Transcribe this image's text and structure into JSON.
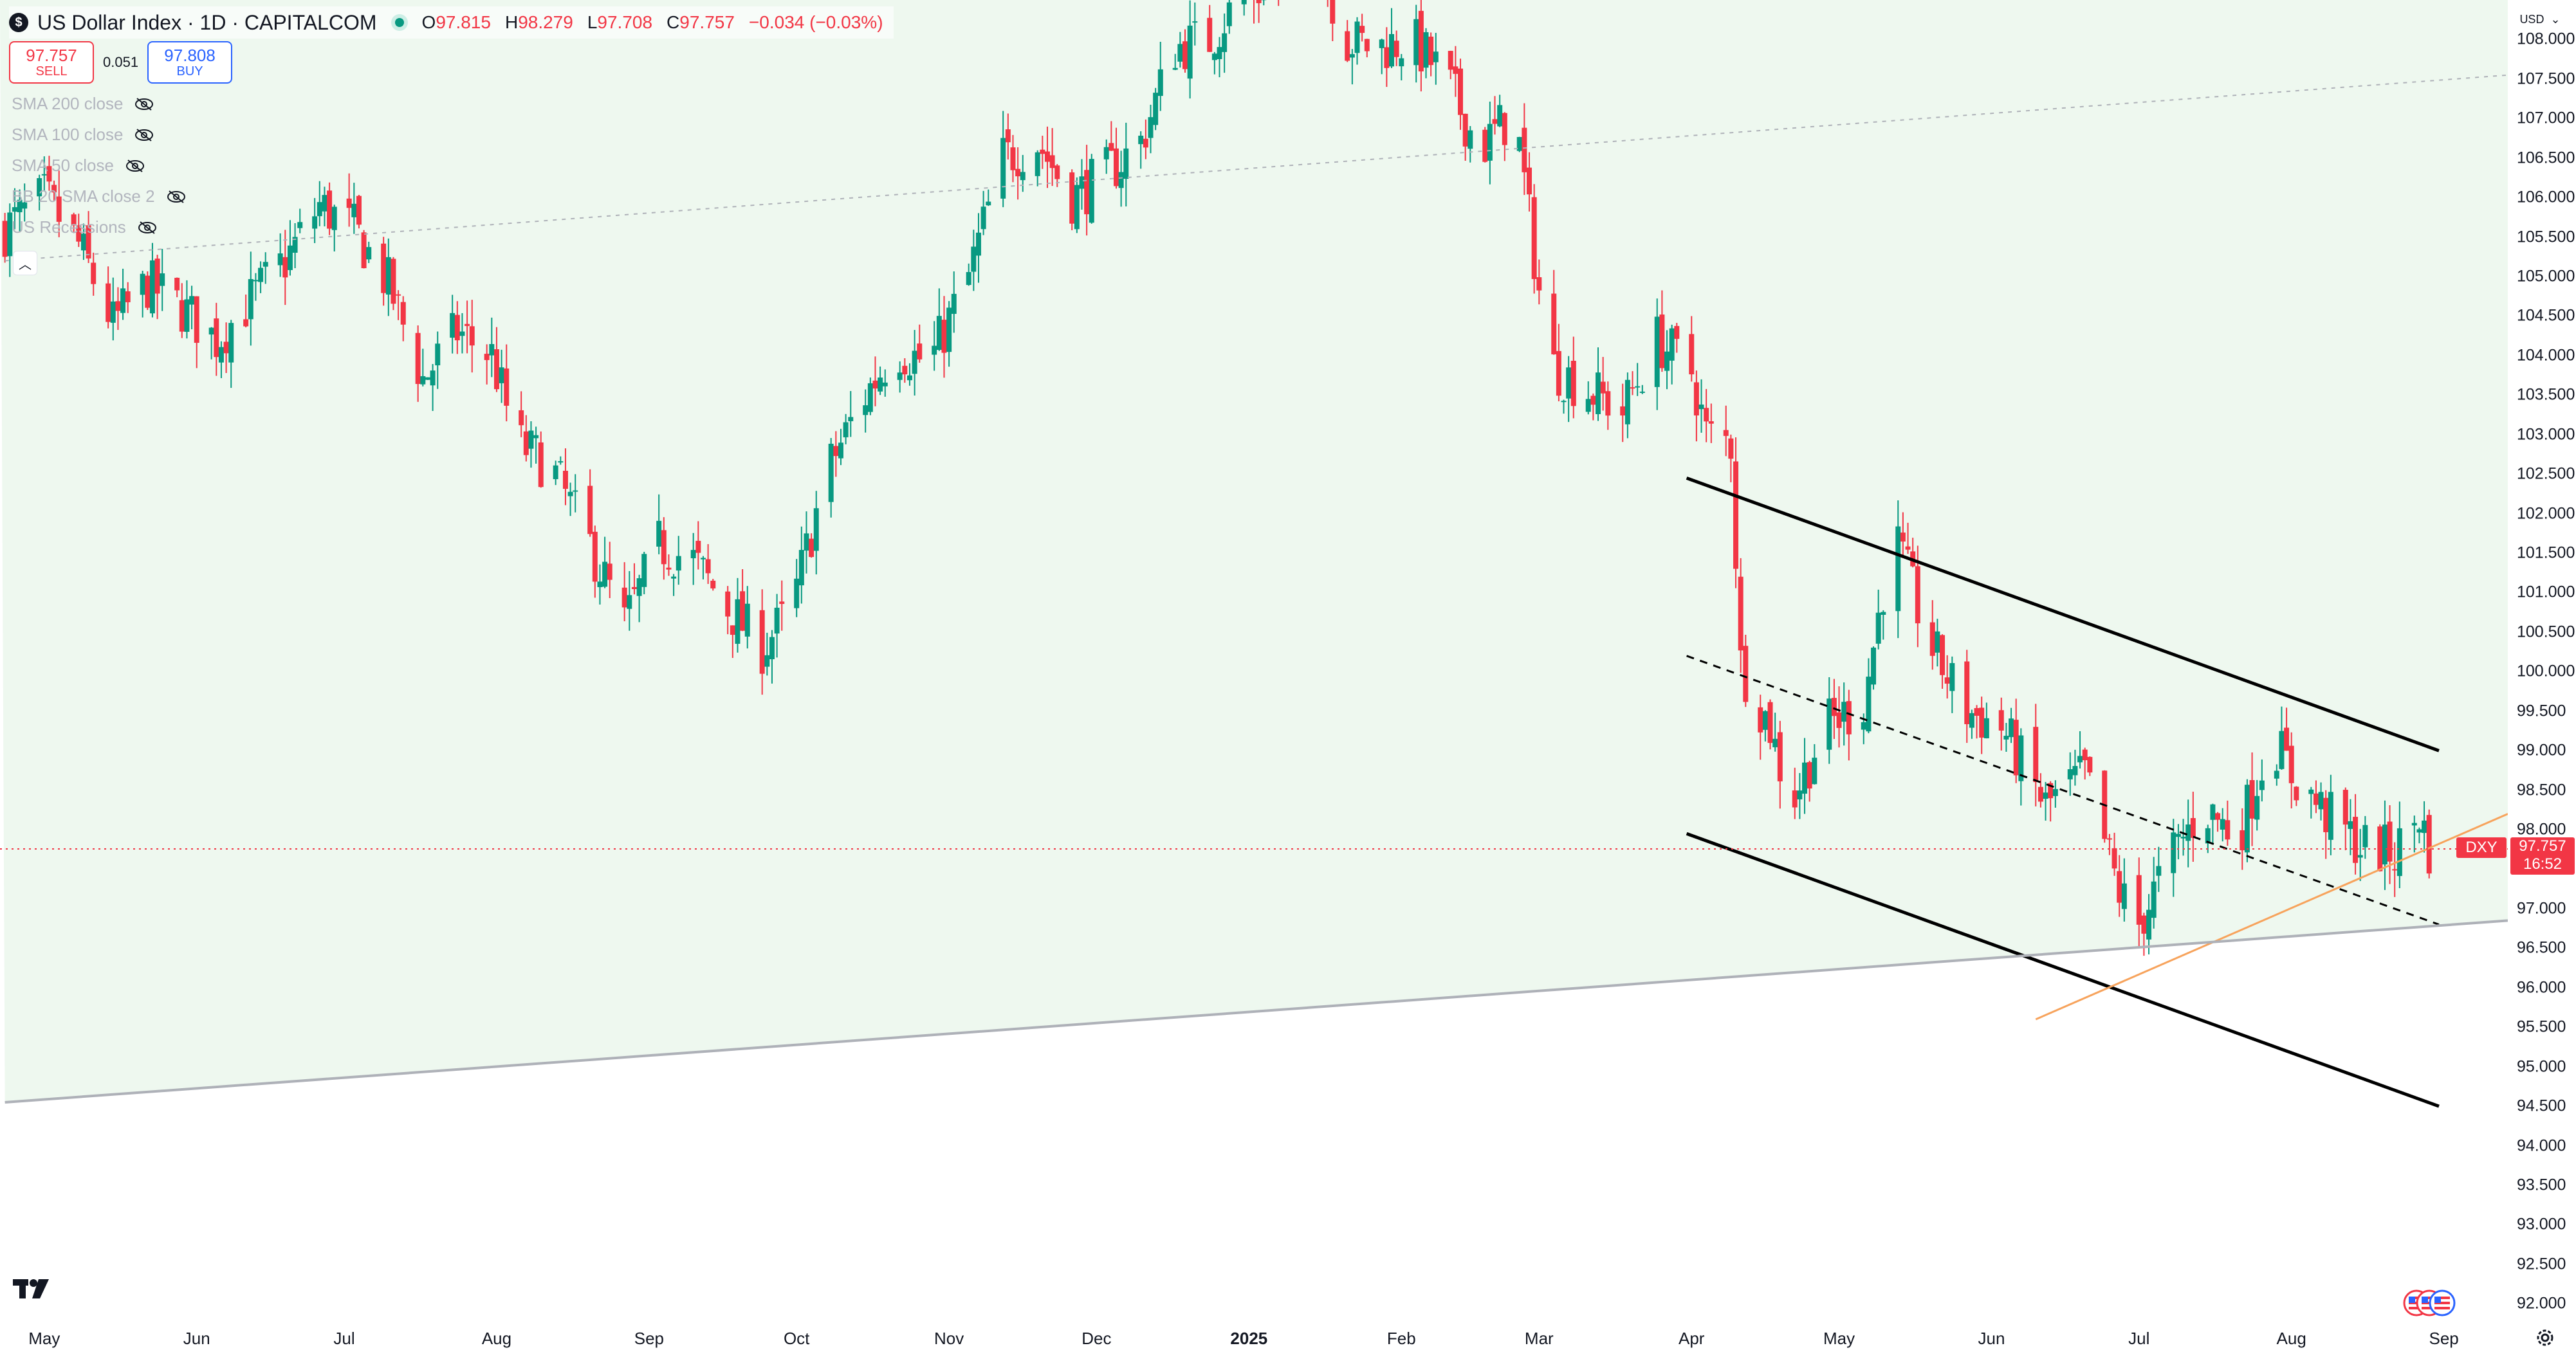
{
  "header": {
    "symbol_badge": "$",
    "title": "US Dollar Index · 1D · CAPITALCOM",
    "ohlc": [
      {
        "k": "O",
        "v": "97.815"
      },
      {
        "k": "H",
        "v": "98.279"
      },
      {
        "k": "L",
        "v": "97.708"
      },
      {
        "k": "C",
        "v": "97.757"
      },
      {
        "k": "",
        "v": "−0.034 (−0.03%)"
      }
    ]
  },
  "trade": {
    "sell_price": "97.757",
    "sell_label": "SELL",
    "spread": "0.051",
    "buy_price": "97.808",
    "buy_label": "BUY"
  },
  "indicators": [
    {
      "label": "SMA 200 close",
      "icon": "eye-crossed-icon"
    },
    {
      "label": "SMA 100 close",
      "icon": "eye-crossed-icon"
    },
    {
      "label": "SMA 50 close",
      "icon": "eye-crossed-icon"
    },
    {
      "label": "BB 20 SMA close 2",
      "icon": "eye-crossed-icon"
    },
    {
      "label": "US Recessions",
      "icon": "eye-crossed-icon"
    }
  ],
  "axis": {
    "currency": "USD",
    "current_price": "97.757",
    "countdown": "16:52",
    "symbol_tag": "DXY"
  },
  "colors": {
    "up": "#089981",
    "down": "#f23645",
    "zone": "#eef8ef",
    "trend": "#f7a35c"
  },
  "chart_data": {
    "type": "candlestick",
    "title": "US Dollar Index · 1D · CAPITALCOM",
    "xlabel": "",
    "ylabel": "",
    "ylim": [
      91.75,
      108.5
    ],
    "y_ticks": [
      92.0,
      92.5,
      93.0,
      93.5,
      94.0,
      94.5,
      95.0,
      95.5,
      96.0,
      96.5,
      97.0,
      97.5,
      98.0,
      98.5,
      99.0,
      99.5,
      100.0,
      100.5,
      101.0,
      101.5,
      102.0,
      102.5,
      103.0,
      103.5,
      104.0,
      104.5,
      105.0,
      105.5,
      106.0,
      106.5,
      107.0,
      107.5,
      108.0
    ],
    "x_ticks": [
      {
        "label": "May",
        "date": "2024-05-01"
      },
      {
        "label": "Jun",
        "date": "2024-06-01"
      },
      {
        "label": "Jul",
        "date": "2024-07-01"
      },
      {
        "label": "Aug",
        "date": "2024-08-01"
      },
      {
        "label": "Sep",
        "date": "2024-09-01"
      },
      {
        "label": "Oct",
        "date": "2024-10-01"
      },
      {
        "label": "Nov",
        "date": "2024-11-01"
      },
      {
        "label": "Dec",
        "date": "2024-12-01"
      },
      {
        "label": "2025",
        "date": "2025-01-01",
        "bold": true
      },
      {
        "label": "Feb",
        "date": "2025-02-01"
      },
      {
        "label": "Mar",
        "date": "2025-03-01"
      },
      {
        "label": "Apr",
        "date": "2025-04-01"
      },
      {
        "label": "May",
        "date": "2025-05-01"
      },
      {
        "label": "Jun",
        "date": "2025-06-01"
      },
      {
        "label": "Jul",
        "date": "2025-07-01"
      },
      {
        "label": "Aug",
        "date": "2025-08-01"
      },
      {
        "label": "Sep",
        "date": "2025-09-01"
      }
    ],
    "close_path": [
      [
        "2024-04-23",
        105.6
      ],
      [
        "2024-05-01",
        106.0
      ],
      [
        "2024-05-08",
        105.4
      ],
      [
        "2024-05-15",
        104.4
      ],
      [
        "2024-05-22",
        104.9
      ],
      [
        "2024-05-29",
        104.6
      ],
      [
        "2024-06-05",
        104.2
      ],
      [
        "2024-06-12",
        104.7
      ],
      [
        "2024-06-19",
        105.2
      ],
      [
        "2024-06-26",
        105.9
      ],
      [
        "2024-07-03",
        105.6
      ],
      [
        "2024-07-10",
        104.9
      ],
      [
        "2024-07-17",
        103.7
      ],
      [
        "2024-07-24",
        104.3
      ],
      [
        "2024-07-31",
        104.0
      ],
      [
        "2024-08-05",
        102.9
      ],
      [
        "2024-08-12",
        102.6
      ],
      [
        "2024-08-20",
        101.6
      ],
      [
        "2024-08-27",
        100.6
      ],
      [
        "2024-09-03",
        101.6
      ],
      [
        "2024-09-10",
        101.4
      ],
      [
        "2024-09-17",
        100.8
      ],
      [
        "2024-09-24",
        100.3
      ],
      [
        "2024-09-30",
        100.8
      ],
      [
        "2024-10-07",
        102.5
      ],
      [
        "2024-10-14",
        103.4
      ],
      [
        "2024-10-21",
        104.1
      ],
      [
        "2024-10-28",
        103.9
      ],
      [
        "2024-11-05",
        105.0
      ],
      [
        "2024-11-12",
        106.5
      ],
      [
        "2024-11-19",
        106.7
      ],
      [
        "2024-11-26",
        106.0
      ],
      [
        "2024-12-03",
        106.3
      ],
      [
        "2024-12-10",
        106.7
      ],
      [
        "2024-12-17",
        107.9
      ],
      [
        "2024-12-24",
        108.0
      ],
      [
        "2024-12-31",
        108.6
      ],
      [
        "2025-01-07",
        108.7
      ],
      [
        "2025-01-13",
        109.8
      ],
      [
        "2025-01-20",
        108.0
      ],
      [
        "2025-01-27",
        107.9
      ],
      [
        "2025-02-03",
        108.0
      ],
      [
        "2025-02-10",
        107.5
      ],
      [
        "2025-02-17",
        106.6
      ],
      [
        "2025-02-24",
        107.1
      ],
      [
        "2025-03-03",
        103.9
      ],
      [
        "2025-03-10",
        103.6
      ],
      [
        "2025-03-18",
        103.3
      ],
      [
        "2025-03-25",
        104.2
      ],
      [
        "2025-04-01",
        103.8
      ],
      [
        "2025-04-04",
        103.0
      ],
      [
        "2025-04-09",
        102.9
      ],
      [
        "2025-04-11",
        100.1
      ],
      [
        "2025-04-17",
        99.3
      ],
      [
        "2025-04-21",
        98.3
      ],
      [
        "2025-04-28",
        99.3
      ],
      [
        "2025-05-06",
        99.6
      ],
      [
        "2025-05-12",
        101.8
      ],
      [
        "2025-05-19",
        100.4
      ],
      [
        "2025-05-27",
        99.5
      ],
      [
        "2025-06-03",
        99.3
      ],
      [
        "2025-06-12",
        98.3
      ],
      [
        "2025-06-20",
        98.7
      ],
      [
        "2025-06-27",
        97.2
      ],
      [
        "2025-07-01",
        96.8
      ],
      [
        "2025-07-07",
        97.6
      ],
      [
        "2025-07-14",
        98.3
      ],
      [
        "2025-07-21",
        97.9
      ],
      [
        "2025-07-28",
        99.2
      ],
      [
        "2025-08-01",
        98.7
      ],
      [
        "2025-08-08",
        98.2
      ],
      [
        "2025-08-15",
        97.8
      ],
      [
        "2025-08-22",
        97.7
      ],
      [
        "2025-08-27",
        98.2
      ],
      [
        "2025-08-29",
        97.76
      ]
    ],
    "annotations": [
      {
        "type": "channel-upper",
        "from": [
          "2025-03-31",
          102.45
        ],
        "to": [
          "2025-08-31",
          99.0
        ]
      },
      {
        "type": "channel-mid",
        "from": [
          "2025-03-31",
          100.2
        ],
        "to": [
          "2025-08-31",
          96.8
        ],
        "dashed": true
      },
      {
        "type": "channel-lower",
        "from": [
          "2025-03-31",
          97.95
        ],
        "to": [
          "2025-08-31",
          94.5
        ]
      },
      {
        "type": "rising-trendline",
        "from": [
          "2025-06-10",
          95.6
        ],
        "to": [
          "2025-09-14",
          98.2
        ]
      },
      {
        "type": "long-support",
        "from": [
          "2024-04-23",
          94.55
        ],
        "to": [
          "2025-09-14",
          96.85
        ]
      },
      {
        "type": "long-resistance",
        "from": [
          "2024-04-23",
          105.2
        ],
        "to": [
          "2025-09-14",
          107.55
        ],
        "dotted": true
      },
      {
        "type": "current-price-line",
        "value": 97.757
      }
    ]
  }
}
